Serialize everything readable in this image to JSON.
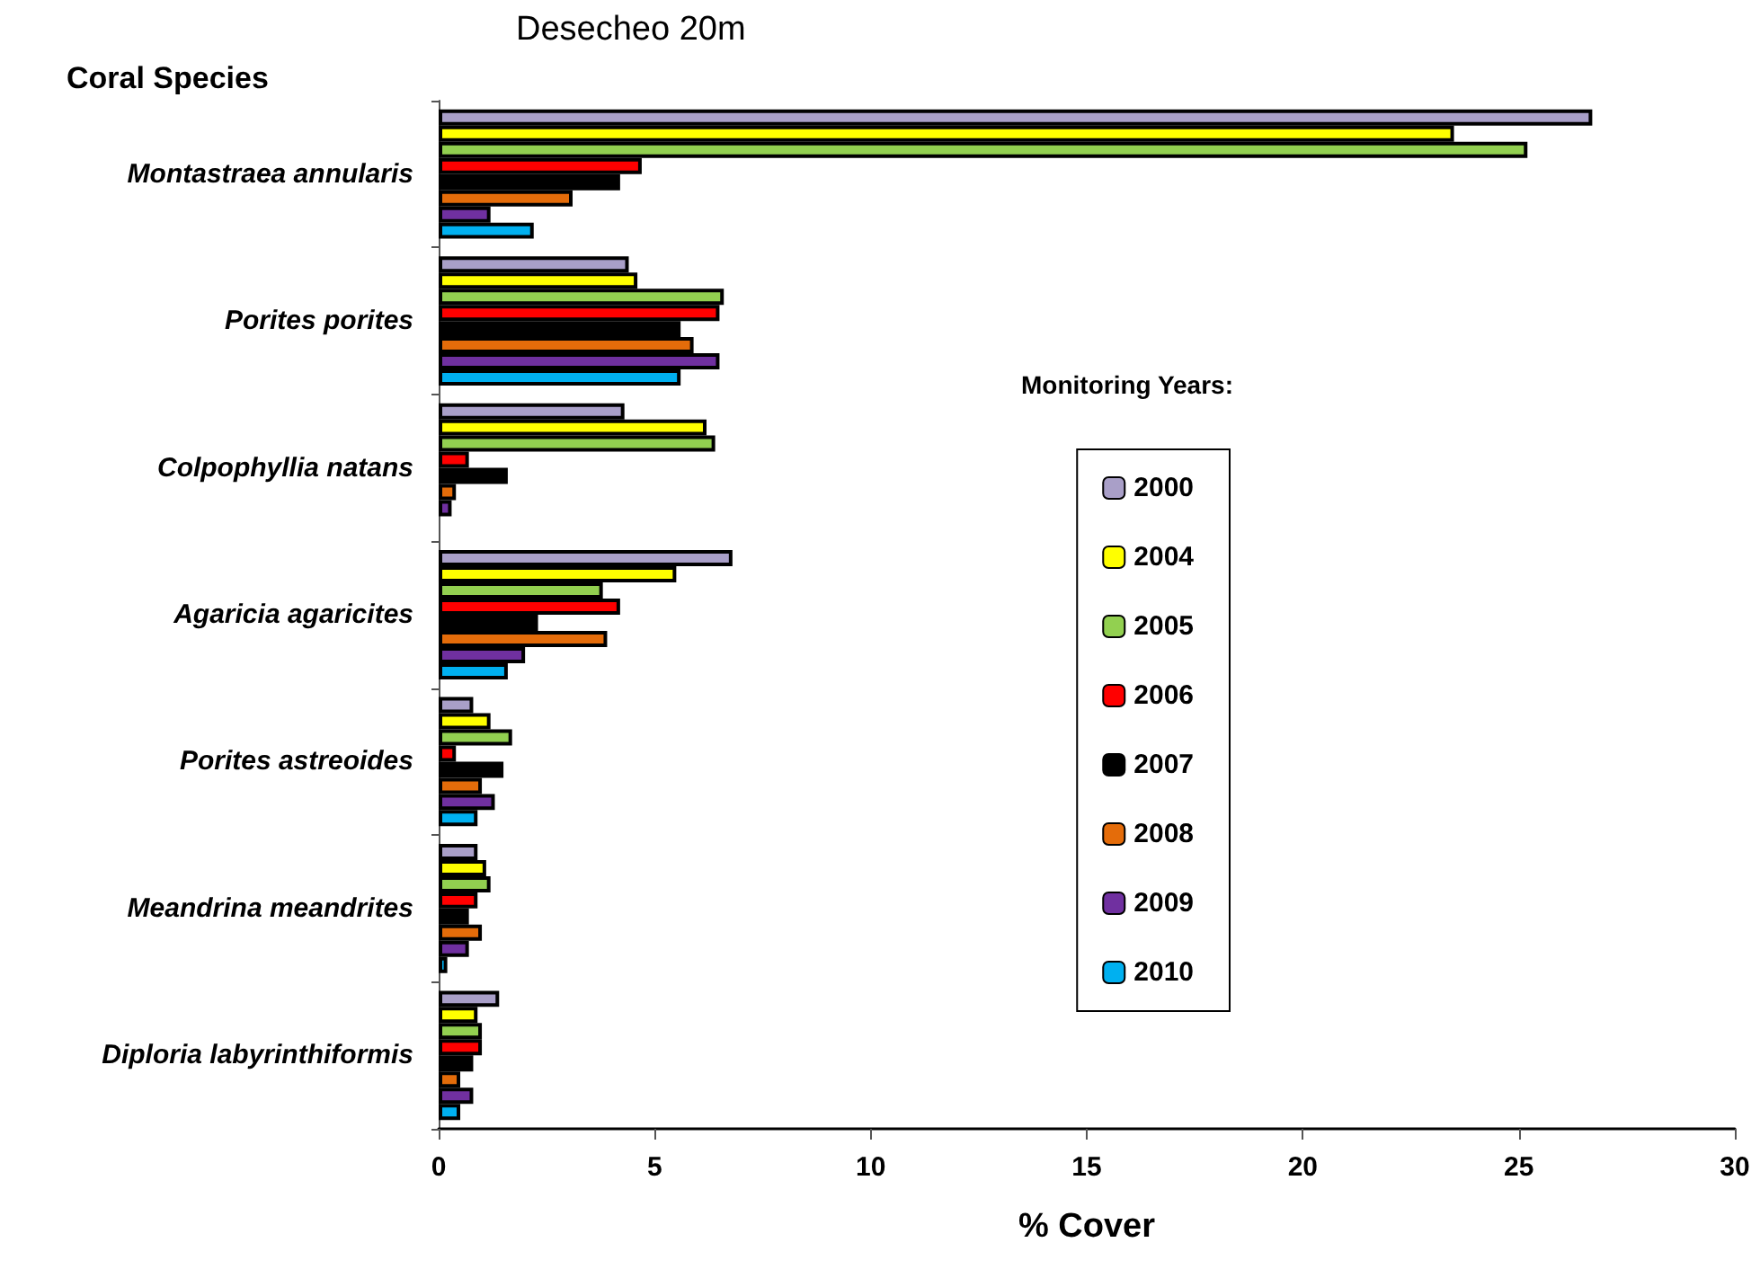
{
  "chart_data": {
    "type": "bar",
    "orientation": "horizontal",
    "title": "Desecheo 20m",
    "ylabel": "Coral Species",
    "xlabel": "% Cover",
    "legend_title": "Monitoring Years:",
    "legend": "right",
    "categories": [
      "Montastraea annularis",
      "Porites porites",
      "Colpophyllia natans",
      "Agaricia agaricites",
      "Porites astreoides",
      "Meandrina meandrites",
      "Diploria labyrinthiformis"
    ],
    "series": [
      {
        "name": "2000",
        "color": "#a99fc8",
        "values": [
          26.7,
          4.4,
          4.3,
          6.8,
          0.8,
          0.9,
          1.4
        ]
      },
      {
        "name": "2004",
        "color": "#ffff00",
        "values": [
          23.5,
          4.6,
          6.2,
          5.5,
          1.2,
          1.1,
          0.9
        ]
      },
      {
        "name": "2005",
        "color": "#92d050",
        "values": [
          25.2,
          6.6,
          6.4,
          3.8,
          1.7,
          1.2,
          1.0
        ]
      },
      {
        "name": "2006",
        "color": "#ff0000",
        "values": [
          4.7,
          6.5,
          0.7,
          4.2,
          0.4,
          0.9,
          1.0
        ]
      },
      {
        "name": "2007",
        "color": "#000000",
        "values": [
          4.2,
          5.6,
          1.6,
          2.3,
          1.5,
          0.7,
          0.8
        ]
      },
      {
        "name": "2008",
        "color": "#e46c0a",
        "values": [
          3.1,
          5.9,
          0.4,
          3.9,
          1.0,
          1.0,
          0.5
        ]
      },
      {
        "name": "2009",
        "color": "#7030a0",
        "values": [
          1.2,
          6.5,
          0.3,
          2.0,
          1.3,
          0.7,
          0.8
        ]
      },
      {
        "name": "2010",
        "color": "#00b0f0",
        "values": [
          2.2,
          5.6,
          null,
          1.6,
          0.9,
          0.2,
          0.5
        ]
      }
    ],
    "xlim": [
      0,
      30
    ],
    "xticks": [
      0,
      5,
      10,
      15,
      20,
      25,
      30
    ],
    "grid": false
  }
}
